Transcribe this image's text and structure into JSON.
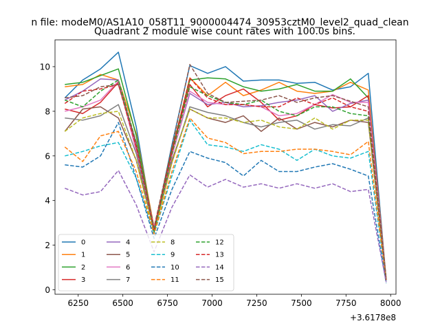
{
  "chart_data": {
    "type": "line",
    "suptitle": "n file: modeM0/AS1A10_058T11_9000004474_30953cztM0_level2_quad_clean",
    "title": "Quadrant 2 module wise count rates with 100.0s bins.",
    "xlabel": "",
    "ylabel": "",
    "x_offset_text": "+3.6178e8",
    "x": [
      6175,
      6275,
      6375,
      6475,
      6575,
      6675,
      6775,
      6875,
      6975,
      7075,
      7175,
      7275,
      7375,
      7475,
      7575,
      7675,
      7775,
      7875,
      7975
    ],
    "xlim": [
      6120,
      8030
    ],
    "ylim": [
      -0.2,
      11.2
    ],
    "xticks": [
      6250,
      6500,
      6750,
      7000,
      7250,
      7500,
      7750,
      8000
    ],
    "yticks": [
      0,
      2,
      4,
      6,
      8,
      10
    ],
    "grid": false,
    "legend": {
      "placement": "lower-left",
      "columns": 4
    },
    "series": [
      {
        "name": "0",
        "color": "#1f77b4",
        "dash": false,
        "values": [
          8.6,
          9.4,
          9.9,
          10.65,
          7.3,
          2.6,
          6.5,
          10.05,
          9.7,
          10.0,
          9.35,
          9.4,
          9.4,
          9.25,
          9.3,
          8.95,
          9.1,
          9.7,
          0.45
        ]
      },
      {
        "name": "1",
        "color": "#ff7f0e",
        "dash": false,
        "values": [
          9.1,
          9.2,
          9.65,
          9.4,
          7.0,
          2.8,
          6.2,
          9.5,
          8.7,
          9.3,
          8.7,
          8.95,
          9.3,
          8.9,
          8.8,
          8.9,
          9.3,
          8.95,
          0.5
        ]
      },
      {
        "name": "2",
        "color": "#2ca02c",
        "dash": false,
        "values": [
          9.2,
          9.3,
          9.6,
          9.9,
          6.9,
          2.7,
          6.3,
          9.4,
          9.5,
          9.45,
          9.1,
          8.9,
          9.0,
          9.2,
          8.9,
          8.9,
          9.45,
          8.6,
          0.45
        ]
      },
      {
        "name": "3",
        "color": "#d62728",
        "dash": false,
        "values": [
          8.1,
          7.9,
          8.4,
          9.3,
          6.3,
          2.7,
          6.2,
          9.2,
          8.2,
          8.7,
          9.0,
          8.4,
          7.6,
          7.8,
          8.3,
          8.15,
          8.2,
          8.7,
          0.45
        ]
      },
      {
        "name": "4",
        "color": "#9467bd",
        "dash": false,
        "values": [
          8.5,
          8.9,
          9.45,
          9.4,
          6.5,
          2.7,
          6.0,
          8.8,
          8.3,
          8.4,
          8.2,
          8.25,
          8.4,
          8.5,
          8.7,
          8.0,
          8.35,
          8.5,
          0.45
        ]
      },
      {
        "name": "5",
        "color": "#8c564b",
        "dash": false,
        "values": [
          7.1,
          8.1,
          8.2,
          7.7,
          5.8,
          2.7,
          5.8,
          8.1,
          7.7,
          7.5,
          7.8,
          7.1,
          7.7,
          7.2,
          7.5,
          7.3,
          7.6,
          7.5,
          0.45
        ]
      },
      {
        "name": "6",
        "color": "#e377c2",
        "dash": false,
        "values": [
          8.0,
          8.2,
          8.5,
          9.35,
          6.2,
          2.8,
          6.0,
          8.9,
          8.4,
          8.3,
          8.3,
          8.2,
          7.8,
          7.9,
          8.3,
          8.75,
          8.4,
          8.4,
          0.45
        ]
      },
      {
        "name": "7",
        "color": "#7f7f7f",
        "dash": false,
        "values": [
          7.7,
          7.6,
          7.8,
          8.3,
          6.1,
          2.6,
          5.7,
          8.2,
          7.95,
          7.8,
          7.5,
          7.3,
          7.5,
          7.6,
          7.2,
          7.4,
          7.35,
          7.7,
          0.4
        ]
      },
      {
        "name": "8",
        "color": "#bcbd22",
        "dash": true,
        "values": [
          7.1,
          7.7,
          7.9,
          8.0,
          5.8,
          2.5,
          5.7,
          8.1,
          7.7,
          7.7,
          7.5,
          7.6,
          7.3,
          7.2,
          7.7,
          7.2,
          7.6,
          7.6,
          0.45
        ]
      },
      {
        "name": "9",
        "color": "#17becf",
        "dash": true,
        "values": [
          6.0,
          6.2,
          6.45,
          6.6,
          5.0,
          2.5,
          5.1,
          7.6,
          6.5,
          6.4,
          6.2,
          6.5,
          6.3,
          5.8,
          6.3,
          6.0,
          5.9,
          6.2,
          0.4
        ]
      },
      {
        "name": "10",
        "color": "#1f77b4",
        "dash": true,
        "values": [
          5.6,
          5.5,
          6.0,
          7.5,
          5.0,
          2.3,
          4.5,
          6.2,
          5.9,
          5.7,
          5.1,
          5.8,
          5.3,
          5.3,
          5.5,
          5.65,
          5.4,
          5.1,
          0.3
        ]
      },
      {
        "name": "11",
        "color": "#ff7f0e",
        "dash": true,
        "values": [
          6.4,
          5.75,
          6.9,
          7.1,
          5.3,
          2.5,
          5.3,
          7.7,
          6.8,
          6.6,
          6.1,
          6.2,
          6.2,
          6.3,
          6.3,
          6.2,
          6.05,
          6.65,
          0.4
        ]
      },
      {
        "name": "12",
        "color": "#2ca02c",
        "dash": true,
        "values": [
          8.5,
          8.2,
          8.9,
          9.4,
          6.6,
          2.6,
          6.1,
          9.1,
          8.7,
          8.4,
          8.3,
          8.5,
          8.0,
          7.8,
          8.2,
          8.2,
          7.9,
          7.8,
          0.45
        ]
      },
      {
        "name": "13",
        "color": "#d62728",
        "dash": true,
        "values": [
          8.35,
          8.9,
          9.0,
          9.2,
          6.4,
          2.7,
          6.2,
          9.5,
          8.6,
          8.3,
          8.3,
          8.2,
          8.2,
          8.6,
          8.3,
          8.6,
          8.2,
          8.0,
          0.45
        ]
      },
      {
        "name": "14",
        "color": "#9467bd",
        "dash": true,
        "values": [
          4.55,
          4.25,
          4.4,
          5.35,
          3.8,
          1.7,
          3.7,
          5.15,
          4.6,
          4.95,
          4.6,
          4.75,
          4.55,
          4.75,
          4.55,
          4.75,
          4.4,
          4.5,
          0.35
        ]
      },
      {
        "name": "15",
        "color": "#8c564b",
        "dash": true,
        "values": [
          8.6,
          8.7,
          9.1,
          9.2,
          6.6,
          2.8,
          6.4,
          10.1,
          8.8,
          8.4,
          8.45,
          8.5,
          8.7,
          8.4,
          8.6,
          8.7,
          8.45,
          8.2,
          0.5
        ]
      }
    ]
  }
}
